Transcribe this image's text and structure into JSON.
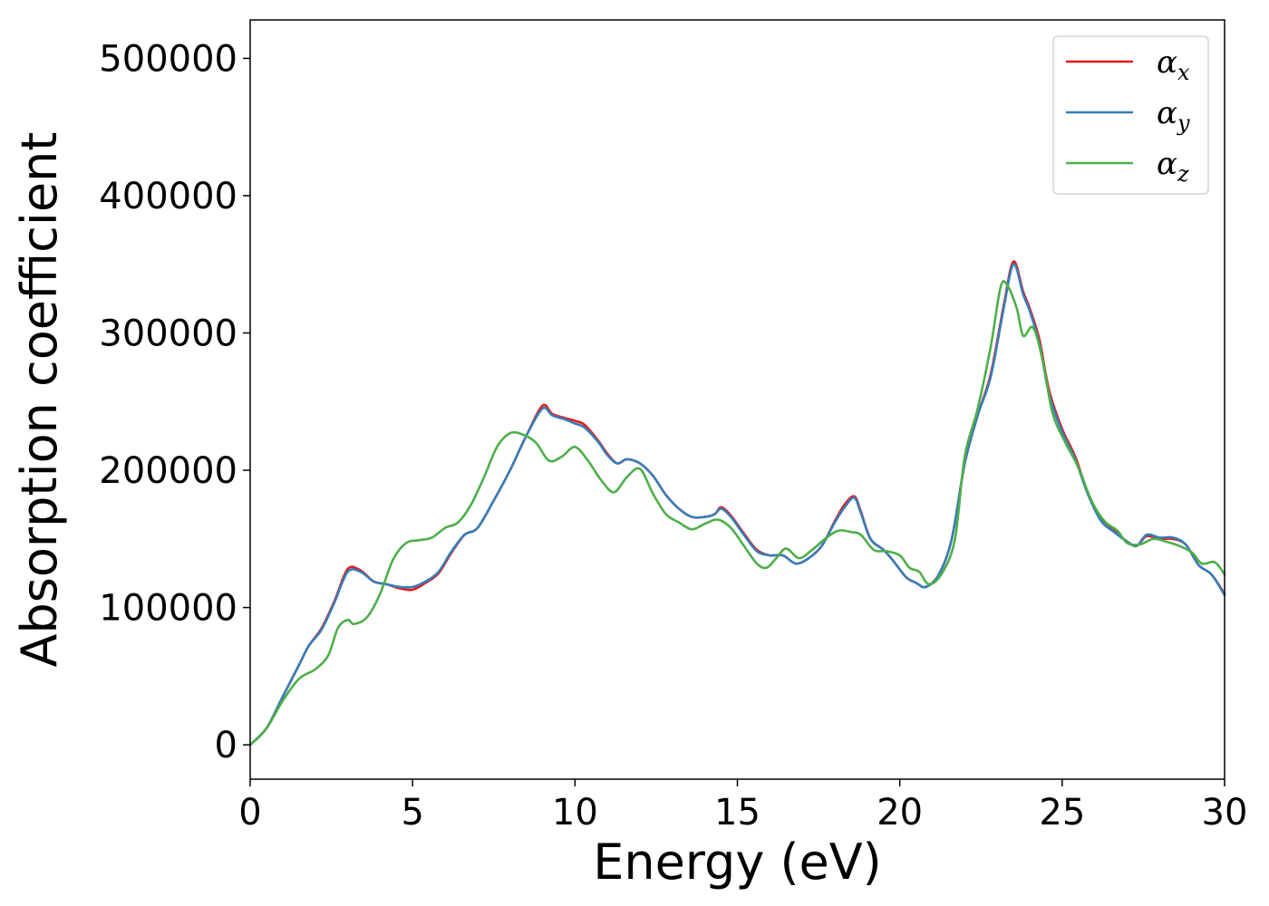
{
  "chart_data": {
    "type": "line",
    "xlabel": "Energy (eV)",
    "ylabel": "Absorption coefficient",
    "xlim": [
      0,
      30
    ],
    "ylim": [
      -25000,
      528000
    ],
    "xticks": [
      0,
      5,
      10,
      15,
      20,
      25,
      30
    ],
    "xtick_labels": [
      "0",
      "5",
      "10",
      "15",
      "20",
      "25",
      "30"
    ],
    "yticks": [
      0,
      100000,
      200000,
      300000,
      400000,
      500000
    ],
    "ytick_labels": [
      "0",
      "100000",
      "200000",
      "300000",
      "400000",
      "500000"
    ],
    "grid": false,
    "legend_position": "top-right",
    "series": [
      {
        "name": "α",
        "subscript": "x",
        "color": "#e41a1c",
        "points": [
          [
            0,
            0
          ],
          [
            0.5,
            12000
          ],
          [
            1,
            35000
          ],
          [
            1.5,
            58000
          ],
          [
            1.8,
            72000
          ],
          [
            2.2,
            85000
          ],
          [
            2.6,
            105000
          ],
          [
            3,
            128000
          ],
          [
            3.4,
            127000
          ],
          [
            3.8,
            119000
          ],
          [
            4.2,
            117000
          ],
          [
            4.6,
            114000
          ],
          [
            5,
            113000
          ],
          [
            5.4,
            118000
          ],
          [
            5.8,
            125000
          ],
          [
            6.2,
            140000
          ],
          [
            6.6,
            153000
          ],
          [
            7,
            158000
          ],
          [
            7.5,
            178000
          ],
          [
            8,
            200000
          ],
          [
            8.5,
            225000
          ],
          [
            9,
            247000
          ],
          [
            9.3,
            241000
          ],
          [
            9.7,
            238000
          ],
          [
            10,
            236000
          ],
          [
            10.3,
            233000
          ],
          [
            10.7,
            222000
          ],
          [
            11,
            212000
          ],
          [
            11.3,
            205000
          ],
          [
            11.6,
            208000
          ],
          [
            12,
            205000
          ],
          [
            12.4,
            196000
          ],
          [
            12.8,
            182000
          ],
          [
            13.2,
            172000
          ],
          [
            13.6,
            166000
          ],
          [
            14,
            166000
          ],
          [
            14.3,
            168000
          ],
          [
            14.5,
            173000
          ],
          [
            14.8,
            167000
          ],
          [
            15.2,
            154000
          ],
          [
            15.6,
            142000
          ],
          [
            16,
            138000
          ],
          [
            16.4,
            138000
          ],
          [
            16.8,
            132000
          ],
          [
            17.2,
            136000
          ],
          [
            17.6,
            145000
          ],
          [
            18,
            163000
          ],
          [
            18.3,
            175000
          ],
          [
            18.6,
            181000
          ],
          [
            18.8,
            170000
          ],
          [
            19.1,
            150000
          ],
          [
            19.5,
            142000
          ],
          [
            19.8,
            134000
          ],
          [
            20.2,
            122000
          ],
          [
            20.5,
            118000
          ],
          [
            20.8,
            115000
          ],
          [
            21.2,
            124000
          ],
          [
            21.6,
            150000
          ],
          [
            22,
            205000
          ],
          [
            22.4,
            240000
          ],
          [
            22.8,
            270000
          ],
          [
            23.2,
            320000
          ],
          [
            23.5,
            352000
          ],
          [
            23.8,
            330000
          ],
          [
            24,
            318000
          ],
          [
            24.3,
            295000
          ],
          [
            24.6,
            258000
          ],
          [
            25,
            230000
          ],
          [
            25.4,
            210000
          ],
          [
            25.8,
            183000
          ],
          [
            26.2,
            164000
          ],
          [
            26.6,
            156000
          ],
          [
            27,
            148000
          ],
          [
            27.3,
            145000
          ],
          [
            27.6,
            152000
          ],
          [
            28,
            150000
          ],
          [
            28.4,
            150000
          ],
          [
            28.8,
            146000
          ],
          [
            29.2,
            131000
          ],
          [
            29.6,
            124000
          ],
          [
            30,
            110000
          ]
        ]
      },
      {
        "name": "α",
        "subscript": "y",
        "color": "#377eb8",
        "points": [
          [
            0,
            0
          ],
          [
            0.5,
            12000
          ],
          [
            1,
            35000
          ],
          [
            1.5,
            58000
          ],
          [
            1.8,
            72000
          ],
          [
            2.2,
            84000
          ],
          [
            2.6,
            104000
          ],
          [
            3,
            126000
          ],
          [
            3.4,
            126000
          ],
          [
            3.8,
            119000
          ],
          [
            4.2,
            117000
          ],
          [
            4.6,
            115000
          ],
          [
            5,
            115000
          ],
          [
            5.4,
            119000
          ],
          [
            5.8,
            126000
          ],
          [
            6.2,
            141000
          ],
          [
            6.6,
            153000
          ],
          [
            7,
            158000
          ],
          [
            7.5,
            178000
          ],
          [
            8,
            200000
          ],
          [
            8.5,
            225000
          ],
          [
            9,
            245000
          ],
          [
            9.3,
            240000
          ],
          [
            9.7,
            237000
          ],
          [
            10,
            234000
          ],
          [
            10.3,
            231000
          ],
          [
            10.7,
            221000
          ],
          [
            11,
            211000
          ],
          [
            11.3,
            205000
          ],
          [
            11.6,
            208000
          ],
          [
            12,
            205000
          ],
          [
            12.4,
            196000
          ],
          [
            12.8,
            182000
          ],
          [
            13.2,
            172000
          ],
          [
            13.6,
            166000
          ],
          [
            14,
            166000
          ],
          [
            14.3,
            168000
          ],
          [
            14.5,
            172000
          ],
          [
            14.8,
            166000
          ],
          [
            15.2,
            153000
          ],
          [
            15.6,
            141000
          ],
          [
            16,
            138000
          ],
          [
            16.4,
            138000
          ],
          [
            16.8,
            132000
          ],
          [
            17.2,
            136000
          ],
          [
            17.6,
            145000
          ],
          [
            18,
            162000
          ],
          [
            18.3,
            173000
          ],
          [
            18.6,
            180000
          ],
          [
            18.8,
            169000
          ],
          [
            19.1,
            150000
          ],
          [
            19.5,
            142000
          ],
          [
            19.8,
            134000
          ],
          [
            20.2,
            122000
          ],
          [
            20.5,
            118000
          ],
          [
            20.8,
            115000
          ],
          [
            21.2,
            124000
          ],
          [
            21.6,
            150000
          ],
          [
            22,
            205000
          ],
          [
            22.4,
            240000
          ],
          [
            22.8,
            268000
          ],
          [
            23.2,
            318000
          ],
          [
            23.5,
            350000
          ],
          [
            23.8,
            328000
          ],
          [
            24,
            316000
          ],
          [
            24.3,
            292000
          ],
          [
            24.6,
            255000
          ],
          [
            25,
            228000
          ],
          [
            25.4,
            208000
          ],
          [
            25.8,
            182000
          ],
          [
            26.2,
            163000
          ],
          [
            26.6,
            155000
          ],
          [
            27,
            148000
          ],
          [
            27.3,
            145000
          ],
          [
            27.6,
            153000
          ],
          [
            28,
            151000
          ],
          [
            28.4,
            151000
          ],
          [
            28.8,
            146000
          ],
          [
            29.2,
            131000
          ],
          [
            29.6,
            124000
          ],
          [
            30,
            109000
          ]
        ]
      },
      {
        "name": "α",
        "subscript": "z",
        "color": "#4daf4a",
        "points": [
          [
            0,
            0
          ],
          [
            0.5,
            12000
          ],
          [
            1,
            32000
          ],
          [
            1.5,
            48000
          ],
          [
            2,
            55000
          ],
          [
            2.4,
            65000
          ],
          [
            2.7,
            85000
          ],
          [
            3,
            91000
          ],
          [
            3.2,
            88000
          ],
          [
            3.6,
            93000
          ],
          [
            4,
            110000
          ],
          [
            4.4,
            135000
          ],
          [
            4.8,
            147000
          ],
          [
            5.2,
            149000
          ],
          [
            5.6,
            151000
          ],
          [
            6,
            158000
          ],
          [
            6.4,
            162000
          ],
          [
            6.8,
            175000
          ],
          [
            7.2,
            195000
          ],
          [
            7.6,
            217000
          ],
          [
            8,
            227000
          ],
          [
            8.4,
            226000
          ],
          [
            8.8,
            220000
          ],
          [
            9.2,
            207000
          ],
          [
            9.6,
            210000
          ],
          [
            10,
            217000
          ],
          [
            10.4,
            207000
          ],
          [
            10.8,
            193000
          ],
          [
            11.2,
            184000
          ],
          [
            11.6,
            195000
          ],
          [
            12,
            201000
          ],
          [
            12.4,
            183000
          ],
          [
            12.8,
            168000
          ],
          [
            13.2,
            162000
          ],
          [
            13.6,
            157000
          ],
          [
            14,
            161000
          ],
          [
            14.4,
            164000
          ],
          [
            14.8,
            158000
          ],
          [
            15.2,
            145000
          ],
          [
            15.6,
            132000
          ],
          [
            15.9,
            129000
          ],
          [
            16.2,
            136000
          ],
          [
            16.5,
            143000
          ],
          [
            16.9,
            136000
          ],
          [
            17.3,
            142000
          ],
          [
            17.7,
            150000
          ],
          [
            18.1,
            156000
          ],
          [
            18.5,
            155000
          ],
          [
            18.8,
            153000
          ],
          [
            19.2,
            142000
          ],
          [
            19.6,
            141000
          ],
          [
            20,
            138000
          ],
          [
            20.3,
            129000
          ],
          [
            20.6,
            126000
          ],
          [
            20.9,
            117000
          ],
          [
            21.3,
            125000
          ],
          [
            21.7,
            150000
          ],
          [
            22,
            210000
          ],
          [
            22.4,
            245000
          ],
          [
            22.8,
            290000
          ],
          [
            23.1,
            333000
          ],
          [
            23.3,
            335000
          ],
          [
            23.6,
            318000
          ],
          [
            23.8,
            298000
          ],
          [
            24.1,
            304000
          ],
          [
            24.4,
            280000
          ],
          [
            24.7,
            242000
          ],
          [
            25.1,
            220000
          ],
          [
            25.5,
            202000
          ],
          [
            25.9,
            178000
          ],
          [
            26.3,
            163000
          ],
          [
            26.7,
            156000
          ],
          [
            27,
            147000
          ],
          [
            27.4,
            146000
          ],
          [
            27.8,
            150000
          ],
          [
            28.2,
            148000
          ],
          [
            28.6,
            145000
          ],
          [
            29,
            140000
          ],
          [
            29.3,
            132000
          ],
          [
            29.7,
            133000
          ],
          [
            30,
            124000
          ]
        ]
      }
    ]
  }
}
